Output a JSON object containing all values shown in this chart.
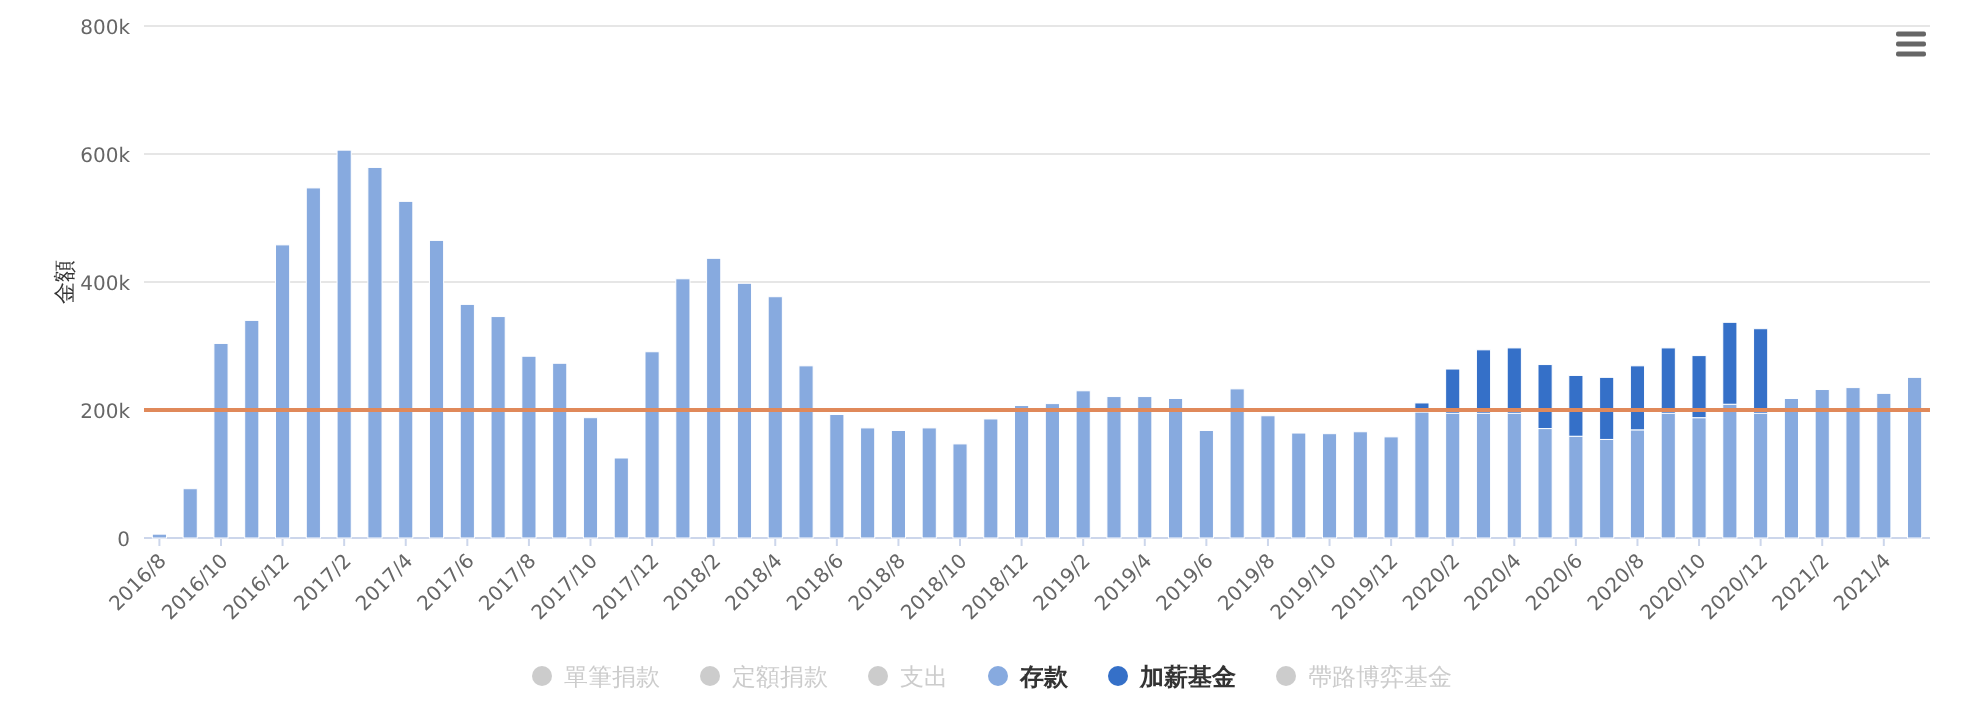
{
  "chart_data": {
    "type": "bar",
    "stacked": true,
    "ylabel": "金額",
    "ylim": [
      0,
      800000
    ],
    "yticks": [
      {
        "value": 0,
        "label": "0"
      },
      {
        "value": 200000,
        "label": "200k"
      },
      {
        "value": 400000,
        "label": "400k"
      },
      {
        "value": 600000,
        "label": "600k"
      },
      {
        "value": 800000,
        "label": "800k"
      }
    ],
    "grid": "y",
    "legend": "bottom",
    "categories": [
      "2016/8",
      null,
      "2016/10",
      null,
      "2016/12",
      null,
      "2017/2",
      null,
      "2017/4",
      null,
      "2017/6",
      null,
      "2017/8",
      null,
      "2017/10",
      null,
      "2017/12",
      null,
      "2018/2",
      null,
      "2018/4",
      null,
      "2018/6",
      null,
      "2018/8",
      null,
      "2018/10",
      null,
      "2018/12",
      null,
      "2019/2",
      null,
      "2019/4",
      null,
      "2019/6",
      null,
      "2019/8",
      null,
      "2019/10",
      null,
      "2019/12",
      null,
      "2020/2",
      null,
      "2020/4",
      null,
      "2020/6",
      null,
      "2020/8",
      null,
      "2020/10",
      null,
      "2020/12",
      null,
      "2021/2",
      null,
      "2021/4",
      null
    ],
    "series": [
      {
        "name": "單筆捐款",
        "color": "#cccccc",
        "values": [
          null,
          null,
          null,
          null,
          null,
          null,
          null,
          null,
          null,
          null,
          null,
          null,
          null,
          null,
          null,
          null,
          null,
          null,
          null,
          null,
          null,
          null,
          null,
          null,
          null,
          null,
          null,
          null,
          null,
          null,
          null,
          null,
          null,
          null,
          null,
          null,
          null,
          null,
          null,
          null,
          null,
          null,
          null,
          null,
          null,
          null,
          null,
          null,
          null,
          null,
          null,
          null,
          null,
          null,
          null,
          null,
          null,
          null
        ]
      },
      {
        "name": "定額捐款",
        "color": "#cccccc",
        "values": [
          null,
          null,
          null,
          null,
          null,
          null,
          null,
          null,
          null,
          null,
          null,
          null,
          null,
          null,
          null,
          null,
          null,
          null,
          null,
          null,
          null,
          null,
          null,
          null,
          null,
          null,
          null,
          null,
          null,
          null,
          null,
          null,
          null,
          null,
          null,
          null,
          null,
          null,
          null,
          null,
          null,
          null,
          null,
          null,
          null,
          null,
          null,
          null,
          null,
          null,
          null,
          null,
          null,
          null,
          null,
          null,
          null,
          null
        ]
      },
      {
        "name": "支出",
        "color": "#cccccc",
        "values": [
          null,
          null,
          null,
          null,
          null,
          null,
          null,
          null,
          null,
          null,
          null,
          null,
          null,
          null,
          null,
          null,
          null,
          null,
          null,
          null,
          null,
          null,
          null,
          null,
          null,
          null,
          null,
          null,
          null,
          null,
          null,
          null,
          null,
          null,
          null,
          null,
          null,
          null,
          null,
          null,
          null,
          null,
          null,
          null,
          null,
          null,
          null,
          null,
          null,
          null,
          null,
          null,
          null,
          null,
          null,
          null,
          null,
          null
        ]
      },
      {
        "name": "存款",
        "color": "#87aadf",
        "values": [
          6000,
          77000,
          304000,
          340000,
          458000,
          547000,
          606000,
          579000,
          526000,
          465000,
          365000,
          346000,
          284000,
          273000,
          188000,
          125000,
          291000,
          405000,
          437000,
          398000,
          377000,
          269000,
          193000,
          172000,
          168000,
          172000,
          147000,
          186000,
          207000,
          210000,
          230000,
          221000,
          221000,
          218000,
          168000,
          233000,
          191000,
          164000,
          163000,
          166000,
          158000,
          197000,
          195000,
          195000,
          195000,
          171000,
          159000,
          154000,
          169000,
          195000,
          188000,
          209000,
          195000,
          218000,
          232000,
          235000,
          226000,
          251000
        ]
      },
      {
        "name": "加薪基金",
        "color": "#3570c8",
        "values": [
          null,
          null,
          null,
          null,
          null,
          null,
          null,
          null,
          null,
          null,
          null,
          null,
          null,
          null,
          null,
          null,
          null,
          null,
          null,
          null,
          null,
          null,
          null,
          null,
          null,
          null,
          null,
          null,
          null,
          null,
          null,
          null,
          null,
          null,
          null,
          null,
          null,
          null,
          null,
          null,
          null,
          14000,
          69000,
          99000,
          102000,
          100000,
          95000,
          97000,
          100000,
          102000,
          97000,
          128000,
          132000,
          null,
          null,
          null,
          null,
          null
        ]
      },
      {
        "name": "帶路博弈基金",
        "color": "#cccccc",
        "values": [
          null,
          null,
          null,
          null,
          null,
          null,
          null,
          null,
          null,
          null,
          null,
          null,
          null,
          null,
          null,
          null,
          null,
          null,
          null,
          null,
          null,
          null,
          null,
          null,
          null,
          null,
          null,
          null,
          null,
          null,
          null,
          null,
          null,
          null,
          null,
          null,
          null,
          null,
          null,
          null,
          null,
          null,
          null,
          null,
          null,
          null,
          null,
          null,
          null,
          null,
          null,
          null,
          null,
          null,
          null,
          null,
          null,
          null
        ]
      }
    ],
    "ref_lines": [
      {
        "axis": "y",
        "value": 200000,
        "color": "#e0895a"
      }
    ]
  }
}
